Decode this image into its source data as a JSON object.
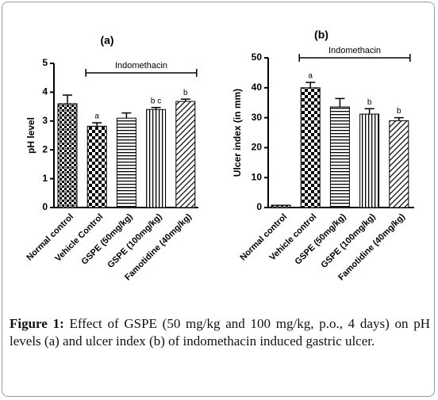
{
  "chart_data": [
    {
      "type": "bar",
      "title": "(a)",
      "ylabel": "pH level",
      "annotation": "Indomethacin",
      "categories": [
        "Normal control",
        "Vehicle Control",
        "GSPE (50mg/kg)",
        "GSPE (100mg/kg)",
        "Famotidine (40mg/kg)"
      ],
      "values": [
        3.6,
        2.82,
        3.1,
        3.4,
        3.68
      ],
      "errors": [
        0.3,
        0.12,
        0.18,
        0.07,
        0.08
      ],
      "value_labels": [
        null,
        "a",
        null,
        "b c",
        "b"
      ],
      "ylim": [
        0,
        5
      ],
      "yticks": [
        0,
        1,
        2,
        3,
        4,
        5
      ],
      "color": "#000000"
    },
    {
      "type": "bar",
      "title": "(b)",
      "ylabel": "Ulcer index (in mm)",
      "annotation": "Indomethacin",
      "categories": [
        "Normal control",
        "Vehicle control",
        "GSPE (50mg/kg)",
        "GSPE (100mg/kg)",
        "Famotidine (40mg/kg)"
      ],
      "values": [
        0.8,
        40,
        33.6,
        31.2,
        29
      ],
      "errors": [
        0,
        1.8,
        2.8,
        1.8,
        1
      ],
      "value_labels": [
        null,
        "a",
        null,
        "b",
        "b"
      ],
      "ylim": [
        0,
        50
      ],
      "yticks": [
        0,
        10,
        20,
        30,
        40,
        50
      ],
      "color": "#000000"
    }
  ],
  "caption": {
    "label": "Figure 1:",
    "text": "Effect of GSPE (50 mg/kg and 100 mg/kg, p.o., 4 days) on pH levels (a) and ulcer index (b) of indomethacin induced gastric ulcer."
  }
}
